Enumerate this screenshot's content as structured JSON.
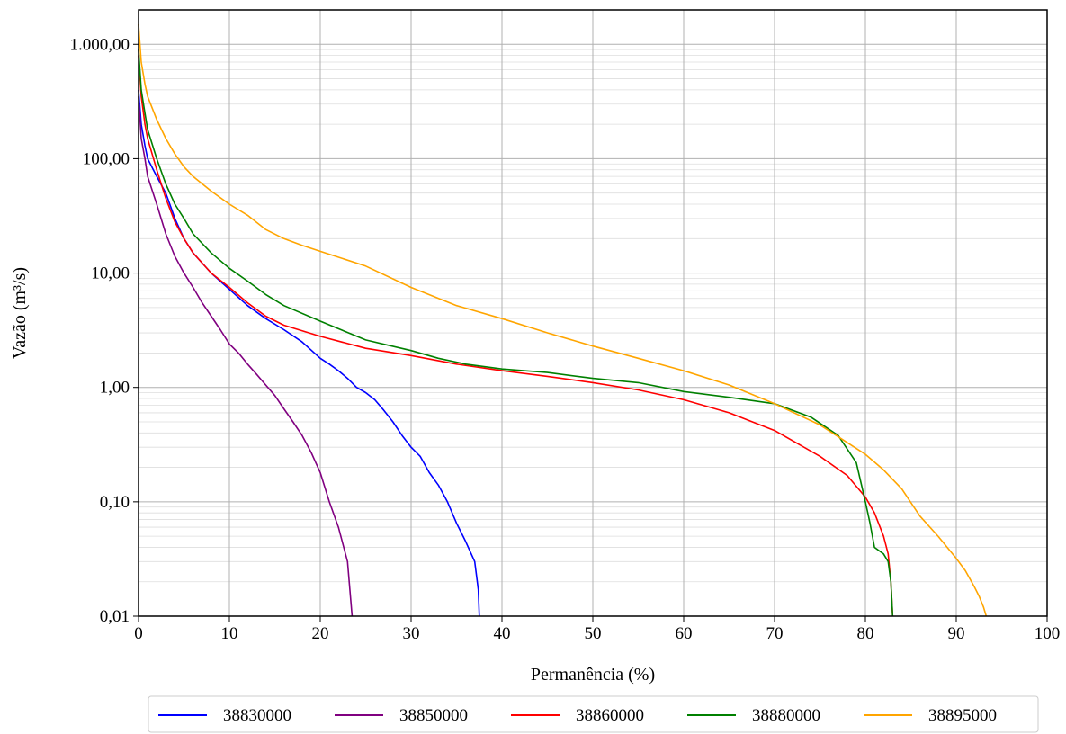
{
  "chart_data": {
    "type": "line",
    "title": "",
    "xlabel": "Permanência (%)",
    "ylabel": "Vazão (m³/s)",
    "xlim": [
      0,
      100
    ],
    "ylim": [
      0.01,
      2000
    ],
    "yscale": "log",
    "grid": true,
    "legend_position": "bottom-center",
    "x_ticks": [
      0,
      10,
      20,
      30,
      40,
      50,
      60,
      70,
      80,
      90,
      100
    ],
    "x_tick_labels": [
      "0",
      "10",
      "20",
      "30",
      "40",
      "50",
      "60",
      "70",
      "80",
      "90",
      "100"
    ],
    "y_ticks": [
      0.01,
      0.1,
      1,
      10,
      100,
      1000
    ],
    "y_tick_labels": [
      "0,01",
      "0,10",
      "1,00",
      "10,00",
      "100,00",
      "1.000,00"
    ],
    "series": [
      {
        "name": "38830000",
        "color": "#0000ff",
        "x": [
          0,
          0.3,
          0.7,
          1,
          2,
          3,
          4,
          5,
          6,
          8,
          10,
          12,
          14,
          16,
          18,
          20,
          21,
          22,
          23,
          24,
          25,
          26,
          27,
          28,
          29,
          30,
          31,
          32,
          33,
          34,
          35,
          36,
          37,
          37.4,
          37.5
        ],
        "y": [
          400,
          200,
          130,
          100,
          70,
          50,
          30,
          20,
          15,
          10,
          7.2,
          5.2,
          4.0,
          3.2,
          2.5,
          1.8,
          1.6,
          1.4,
          1.2,
          1.0,
          0.9,
          0.78,
          0.63,
          0.5,
          0.38,
          0.3,
          0.25,
          0.18,
          0.14,
          0.1,
          0.065,
          0.045,
          0.03,
          0.017,
          0.01
        ]
      },
      {
        "name": "38850000",
        "color": "#800080",
        "x": [
          0,
          0.3,
          0.7,
          1,
          2,
          3,
          4,
          5,
          6,
          7,
          8,
          9,
          10,
          11,
          12,
          13,
          14,
          15,
          16,
          17,
          18,
          19,
          20,
          21,
          22,
          23,
          23.5
        ],
        "y": [
          350,
          150,
          100,
          70,
          40,
          22,
          14,
          10,
          7.5,
          5.5,
          4.2,
          3.2,
          2.4,
          2.0,
          1.6,
          1.3,
          1.05,
          0.85,
          0.65,
          0.5,
          0.38,
          0.27,
          0.18,
          0.1,
          0.06,
          0.03,
          0.01
        ]
      },
      {
        "name": "38860000",
        "color": "#ff0000",
        "x": [
          0,
          0.3,
          0.7,
          1,
          2,
          3,
          4,
          5,
          6,
          8,
          10,
          12,
          14,
          16,
          20,
          25,
          30,
          35,
          40,
          45,
          50,
          55,
          60,
          65,
          70,
          75,
          78,
          80,
          81,
          82,
          82.5,
          82.8,
          83
        ],
        "y": [
          800,
          350,
          200,
          150,
          80,
          45,
          28,
          20,
          15,
          10,
          7.5,
          5.5,
          4.2,
          3.5,
          2.8,
          2.2,
          1.9,
          1.6,
          1.4,
          1.25,
          1.1,
          0.95,
          0.78,
          0.6,
          0.42,
          0.25,
          0.17,
          0.11,
          0.08,
          0.05,
          0.035,
          0.02,
          0.01
        ]
      },
      {
        "name": "38880000",
        "color": "#008000",
        "x": [
          0,
          0.3,
          0.7,
          1,
          2,
          3,
          4,
          5,
          6,
          8,
          10,
          12,
          14,
          16,
          20,
          25,
          30,
          33,
          36,
          40,
          45,
          50,
          55,
          60,
          65,
          70,
          74,
          77,
          79,
          80,
          80.5,
          81,
          82,
          82.5,
          82.8,
          83
        ],
        "y": [
          900,
          400,
          250,
          180,
          100,
          60,
          40,
          30,
          22,
          15,
          11,
          8.5,
          6.5,
          5.2,
          3.8,
          2.6,
          2.1,
          1.8,
          1.6,
          1.45,
          1.35,
          1.2,
          1.1,
          0.92,
          0.82,
          0.72,
          0.55,
          0.38,
          0.22,
          0.1,
          0.065,
          0.04,
          0.035,
          0.03,
          0.02,
          0.01
        ]
      },
      {
        "name": "38895000",
        "color": "#ffa500",
        "x": [
          0,
          0.3,
          0.7,
          1,
          2,
          3,
          4,
          5,
          6,
          8,
          10,
          12,
          14,
          16,
          18,
          20,
          25,
          30,
          35,
          40,
          45,
          50,
          55,
          60,
          65,
          70,
          75,
          80,
          82,
          84,
          86,
          88,
          90,
          91,
          92,
          92.5,
          93,
          93.3
        ],
        "y": [
          1500,
          700,
          450,
          350,
          220,
          150,
          110,
          85,
          70,
          52,
          40,
          32,
          24,
          20,
          17.5,
          15.5,
          11.5,
          7.5,
          5.2,
          4.0,
          3.0,
          2.3,
          1.8,
          1.4,
          1.05,
          0.72,
          0.47,
          0.26,
          0.19,
          0.13,
          0.075,
          0.05,
          0.032,
          0.025,
          0.018,
          0.015,
          0.012,
          0.01
        ]
      }
    ]
  }
}
